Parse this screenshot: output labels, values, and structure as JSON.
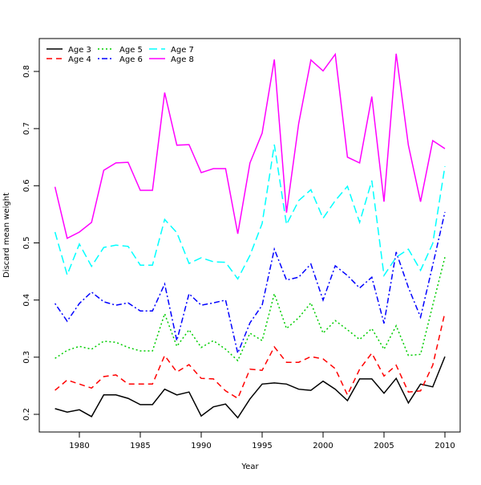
{
  "chart_data": {
    "type": "line",
    "title": "",
    "xlabel": "Year",
    "ylabel": "Discard mean weight",
    "xlim": [
      1978,
      2010
    ],
    "ylim": [
      0.2,
      0.8
    ],
    "xticks": [
      1980,
      1985,
      1990,
      1995,
      2000,
      2005,
      2010
    ],
    "yticks": [
      0.2,
      0.3,
      0.4,
      0.5,
      0.6,
      0.7,
      0.8
    ],
    "grid": false,
    "legend_position": "top-left",
    "x": [
      1978,
      1979,
      1980,
      1981,
      1982,
      1983,
      1984,
      1985,
      1986,
      1987,
      1988,
      1989,
      1990,
      1991,
      1992,
      1993,
      1994,
      1995,
      1996,
      1997,
      1998,
      1999,
      2000,
      2001,
      2002,
      2003,
      2004,
      2005,
      2006,
      2007,
      2008,
      2009,
      2010
    ],
    "series": [
      {
        "name": "Age 3",
        "color": "#000000",
        "dash": "solid",
        "values": [
          0.21,
          0.204,
          0.208,
          0.196,
          0.234,
          0.234,
          0.228,
          0.217,
          0.217,
          0.244,
          0.234,
          0.239,
          0.197,
          0.213,
          0.218,
          0.194,
          0.227,
          0.253,
          0.255,
          0.253,
          0.244,
          0.242,
          0.258,
          0.244,
          0.224,
          0.262,
          0.262,
          0.237,
          0.263,
          0.22,
          0.253,
          0.248,
          0.301
        ]
      },
      {
        "name": "Age 4",
        "color": "#ff0000",
        "dash": "dashed",
        "values": [
          0.242,
          0.26,
          0.253,
          0.246,
          0.266,
          0.269,
          0.253,
          0.253,
          0.253,
          0.303,
          0.274,
          0.287,
          0.263,
          0.262,
          0.241,
          0.228,
          0.279,
          0.277,
          0.318,
          0.291,
          0.291,
          0.301,
          0.297,
          0.28,
          0.234,
          0.279,
          0.307,
          0.267,
          0.286,
          0.239,
          0.241,
          0.286,
          0.378
        ]
      },
      {
        "name": "Age 5",
        "color": "#00cd00",
        "dash": "dotted",
        "values": [
          0.298,
          0.312,
          0.319,
          0.314,
          0.328,
          0.326,
          0.317,
          0.311,
          0.311,
          0.376,
          0.319,
          0.348,
          0.317,
          0.329,
          0.314,
          0.294,
          0.342,
          0.329,
          0.411,
          0.35,
          0.369,
          0.395,
          0.342,
          0.364,
          0.348,
          0.331,
          0.35,
          0.314,
          0.355,
          0.303,
          0.305,
          0.391,
          0.475
        ]
      },
      {
        "name": "Age 6",
        "color": "#0000ff",
        "dash": "dotdash",
        "values": [
          0.394,
          0.363,
          0.394,
          0.414,
          0.397,
          0.391,
          0.395,
          0.381,
          0.381,
          0.428,
          0.329,
          0.411,
          0.391,
          0.395,
          0.4,
          0.307,
          0.36,
          0.391,
          0.489,
          0.435,
          0.44,
          0.463,
          0.4,
          0.46,
          0.443,
          0.421,
          0.44,
          0.359,
          0.484,
          0.422,
          0.37,
          0.461,
          0.554
        ]
      },
      {
        "name": "Age 7",
        "color": "#00ffff",
        "dash": "longdash",
        "values": [
          0.519,
          0.444,
          0.498,
          0.459,
          0.492,
          0.496,
          0.494,
          0.461,
          0.461,
          0.541,
          0.518,
          0.464,
          0.474,
          0.467,
          0.466,
          0.437,
          0.478,
          0.534,
          0.672,
          0.532,
          0.574,
          0.593,
          0.543,
          0.574,
          0.599,
          0.536,
          0.609,
          0.443,
          0.475,
          0.489,
          0.452,
          0.499,
          0.634
        ]
      },
      {
        "name": "Age 8",
        "color": "#ff00ff",
        "dash": "solid",
        "values": [
          0.598,
          0.508,
          0.519,
          0.536,
          0.627,
          0.64,
          0.641,
          0.592,
          0.592,
          0.763,
          0.671,
          0.672,
          0.623,
          0.63,
          0.63,
          0.516,
          0.64,
          0.692,
          0.821,
          0.553,
          0.709,
          0.82,
          0.801,
          0.83,
          0.65,
          0.64,
          0.756,
          0.572,
          0.831,
          0.671,
          0.572,
          0.679,
          0.665
        ]
      }
    ]
  }
}
